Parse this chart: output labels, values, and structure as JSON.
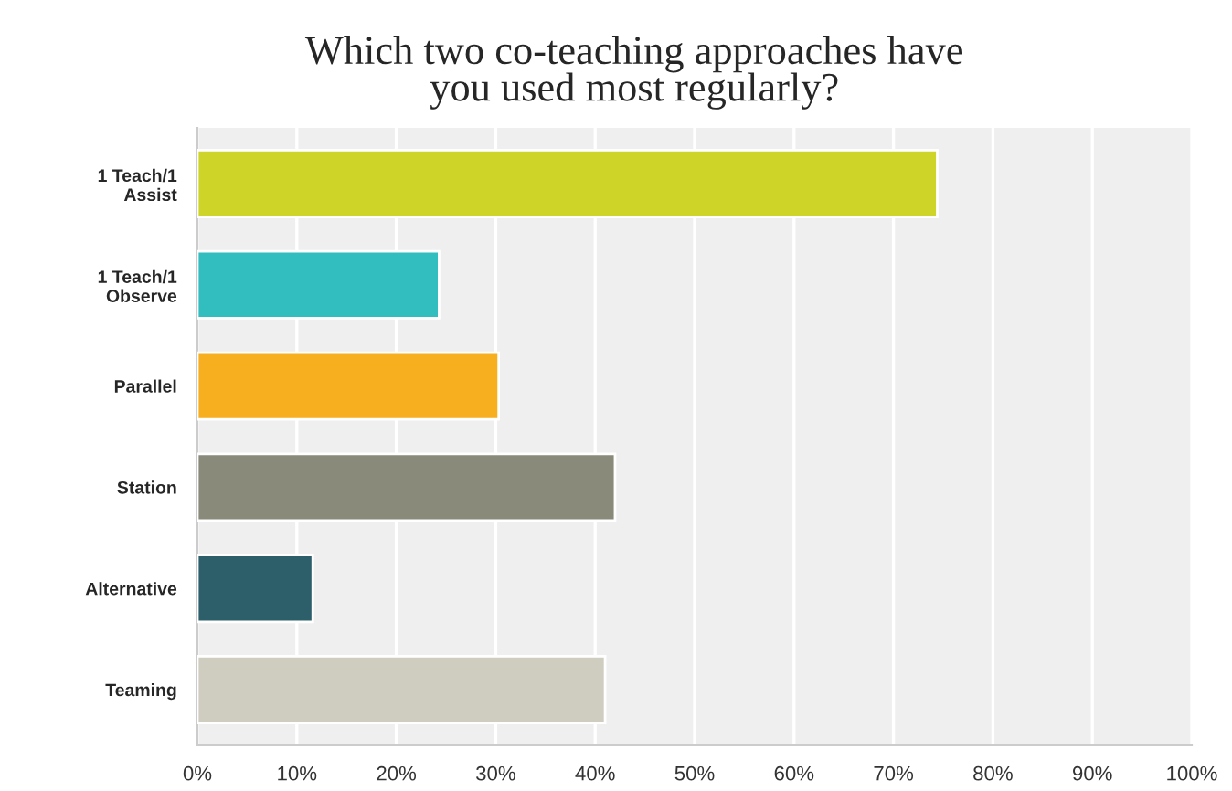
{
  "chart_data": {
    "type": "bar",
    "orientation": "horizontal",
    "title": "Which two co-teaching approaches have\nyou used most regularly?",
    "categories": [
      "1 Teach/1\nAssist",
      "1 Teach/1\nObserve",
      "Parallel",
      "Station",
      "Alternative",
      "Teaming"
    ],
    "values": [
      74.4,
      24.3,
      30.3,
      42.0,
      11.6,
      41.0
    ],
    "colors": [
      "#ced528",
      "#32bdbe",
      "#f7ae1f",
      "#898a79",
      "#2d5f6b",
      "#cfcdc0"
    ],
    "xlim": [
      0,
      100
    ],
    "xticks": [
      {
        "value": 0,
        "label": "0%"
      },
      {
        "value": 10,
        "label": "10%"
      },
      {
        "value": 20,
        "label": "20%"
      },
      {
        "value": 30,
        "label": "30%"
      },
      {
        "value": 40,
        "label": "40%"
      },
      {
        "value": 50,
        "label": "50%"
      },
      {
        "value": 60,
        "label": "60%"
      },
      {
        "value": 70,
        "label": "70%"
      },
      {
        "value": 80,
        "label": "80%"
      },
      {
        "value": 90,
        "label": "90%"
      },
      {
        "value": 100,
        "label": "100%"
      }
    ],
    "grid": "x",
    "legend": false
  }
}
